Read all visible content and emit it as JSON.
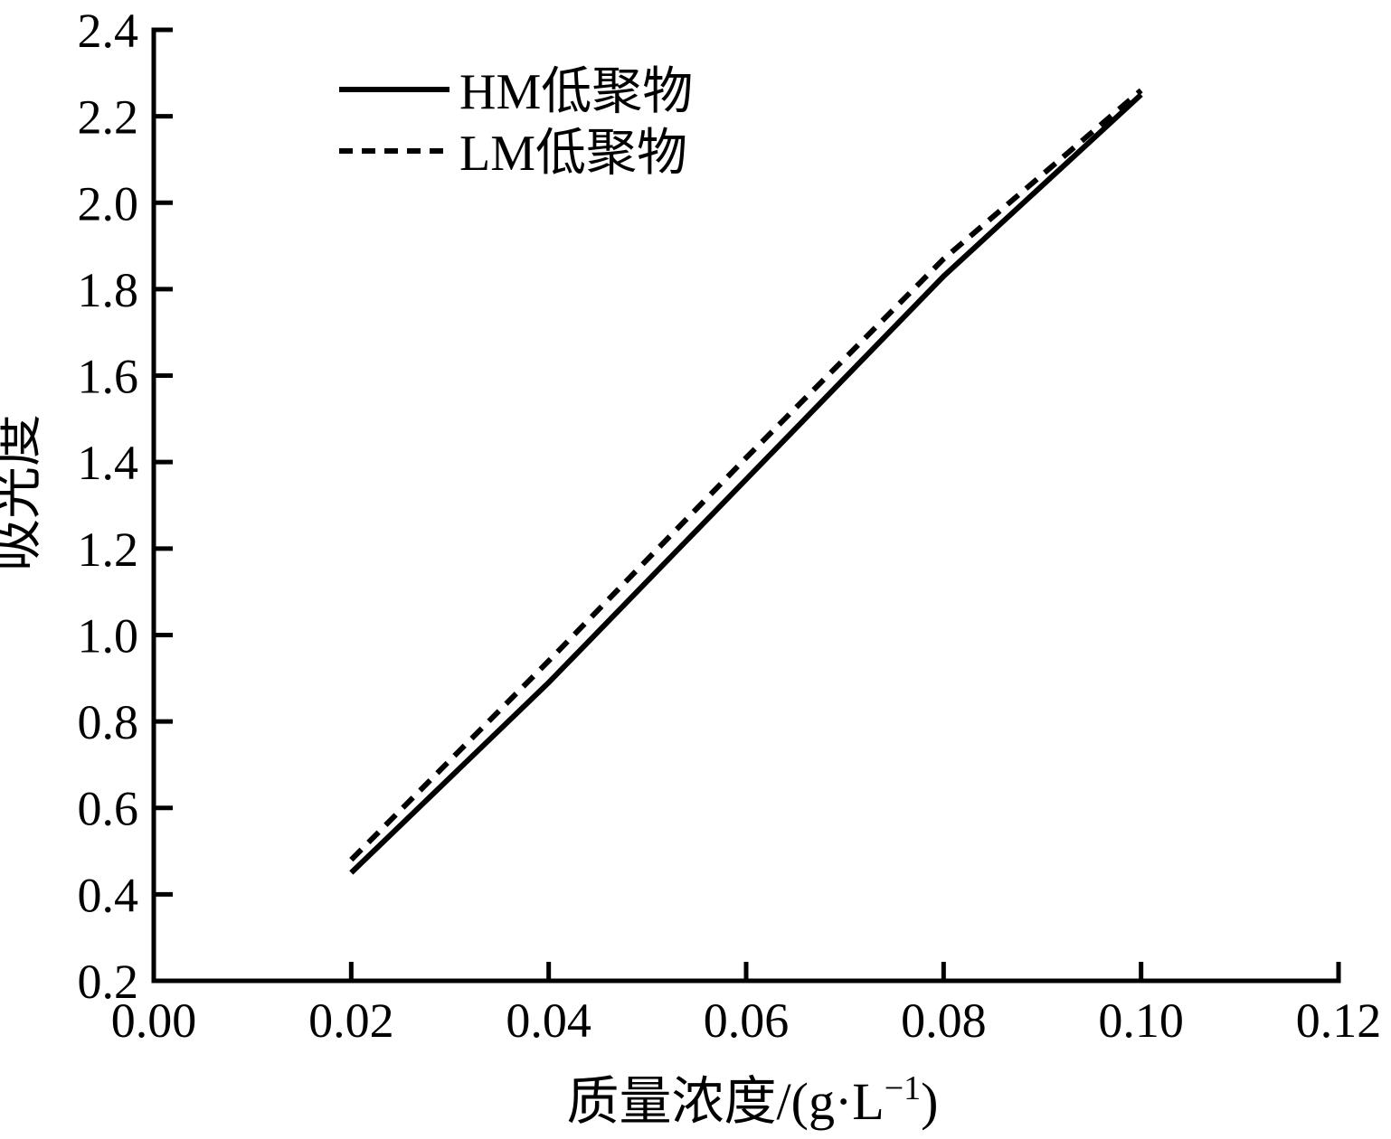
{
  "colors": {
    "foreground": "#000000",
    "background": "#ffffff"
  },
  "chart_data": {
    "type": "line",
    "title": "",
    "xlabel": "质量浓度/(g·L⁻¹)",
    "xlabel_parts": {
      "main": "质量浓度/(g·L",
      "sup": "−1",
      "close": ")"
    },
    "ylabel": "吸光度",
    "xlim": [
      0,
      0.12
    ],
    "ylim": [
      0.2,
      2.4
    ],
    "grid": false,
    "legend_position": "top-left-inside",
    "x_tick_labels": [
      "0.00",
      "0.02",
      "0.04",
      "0.06",
      "0.08",
      "0.10",
      "0.12"
    ],
    "x_tick_values": [
      0,
      0.02,
      0.04,
      0.06,
      0.08,
      0.1,
      0.12
    ],
    "y_tick_labels": [
      "0.2",
      "0.4",
      "0.6",
      "0.8",
      "1.0",
      "1.2",
      "1.4",
      "1.6",
      "1.8",
      "2.0",
      "2.2",
      "2.4"
    ],
    "y_tick_values": [
      0.2,
      0.4,
      0.6,
      0.8,
      1.0,
      1.2,
      1.4,
      1.6,
      1.8,
      2.0,
      2.2,
      2.4
    ],
    "x": [
      0.02,
      0.04,
      0.06,
      0.08,
      0.1
    ],
    "series": [
      {
        "name": "HM低聚物",
        "style": "solid",
        "color": "#000000",
        "values": [
          0.45,
          0.89,
          1.36,
          1.83,
          2.25
        ]
      },
      {
        "name": "LM低聚物",
        "style": "dashed",
        "color": "#000000",
        "values": [
          0.48,
          0.94,
          1.41,
          1.87,
          2.26
        ]
      }
    ]
  }
}
